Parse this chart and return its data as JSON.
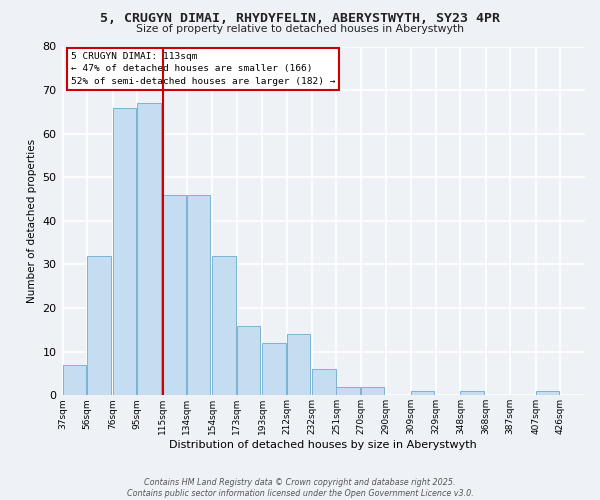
{
  "title": "5, CRUGYN DIMAI, RHYDYFELIN, ABERYSTWYTH, SY23 4PR",
  "subtitle": "Size of property relative to detached houses in Aberystwyth",
  "xlabel": "Distribution of detached houses by size in Aberystwyth",
  "ylabel": "Number of detached properties",
  "bar_color": "#c5ddf0",
  "bar_edge_color": "#7ab4d4",
  "background_color": "#eef2f7",
  "grid_color": "#ffffff",
  "bins": [
    37,
    56,
    76,
    95,
    115,
    134,
    154,
    173,
    193,
    212,
    232,
    251,
    270,
    290,
    309,
    329,
    348,
    368,
    387,
    407,
    426
  ],
  "bin_labels": [
    "37sqm",
    "56sqm",
    "76sqm",
    "95sqm",
    "115sqm",
    "134sqm",
    "154sqm",
    "173sqm",
    "193sqm",
    "212sqm",
    "232sqm",
    "251sqm",
    "270sqm",
    "290sqm",
    "309sqm",
    "329sqm",
    "348sqm",
    "368sqm",
    "387sqm",
    "407sqm",
    "426sqm"
  ],
  "counts": [
    7,
    32,
    66,
    67,
    46,
    46,
    32,
    16,
    12,
    14,
    6,
    2,
    2,
    0,
    1,
    0,
    1,
    0,
    0,
    1,
    0
  ],
  "vline_x": 115,
  "vline_color": "#cc0000",
  "annotation_title": "5 CRUGYN DIMAI: 113sqm",
  "annotation_line1": "← 47% of detached houses are smaller (166)",
  "annotation_line2": "52% of semi-detached houses are larger (182) →",
  "annotation_box_color": "#ffffff",
  "annotation_box_edge": "#cc0000",
  "ylim": [
    0,
    80
  ],
  "yticks": [
    0,
    10,
    20,
    30,
    40,
    50,
    60,
    70,
    80
  ],
  "footer_line1": "Contains HM Land Registry data © Crown copyright and database right 2025.",
  "footer_line2": "Contains public sector information licensed under the Open Government Licence v3.0."
}
